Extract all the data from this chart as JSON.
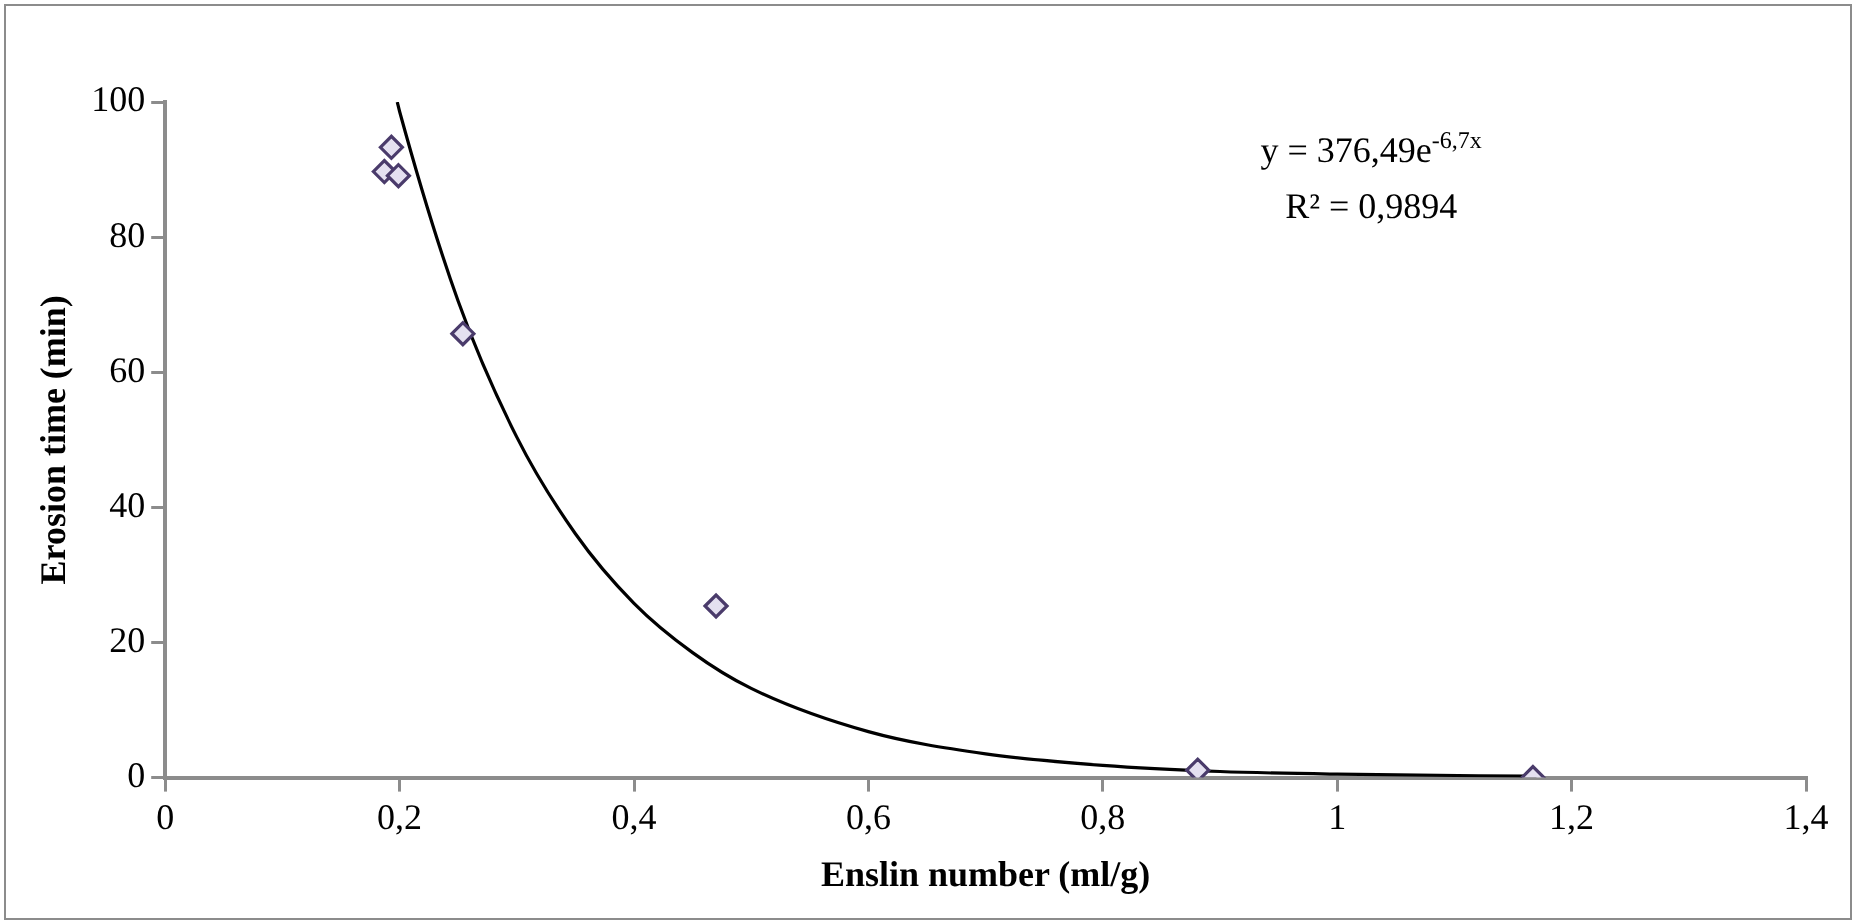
{
  "chart_data": {
    "type": "scatter",
    "xlabel": "Enslin number (ml/g)",
    "ylabel": "Erosion time (min)",
    "xlim": [
      0,
      1.4
    ],
    "xticks": [
      {
        "value": 0,
        "label": "0"
      },
      {
        "value": 0.2,
        "label": "0,2"
      },
      {
        "value": 0.4,
        "label": "0,4"
      },
      {
        "value": 0.6,
        "label": "0,6"
      },
      {
        "value": 0.8,
        "label": "0,8"
      },
      {
        "value": 1,
        "label": "1"
      },
      {
        "value": 1.2,
        "label": "1,2"
      },
      {
        "value": 1.4,
        "label": "1,4"
      }
    ],
    "ylim": [
      0,
      100
    ],
    "yticks": [
      0,
      20,
      40,
      60,
      80,
      100
    ],
    "grid": false,
    "legend": false,
    "marker": "diamond",
    "series": [
      {
        "color": "#4a3b6b",
        "x": [
          0.187,
          0.193,
          0.199,
          0.254,
          0.47,
          0.881,
          1.167
        ],
        "values": [
          89.7,
          93.3,
          89.1,
          65.7,
          25.4,
          1.1,
          0
        ]
      },
      {
        "type": "line",
        "color": "#000000",
        "marker": "none",
        "line_style": "solid",
        "x": [
          0.198,
          0.2,
          0.25,
          0.3,
          0.35,
          0.4,
          0.45,
          0.5,
          0.6,
          0.7,
          0.8,
          0.9,
          1.0,
          1.17
        ],
        "values": [
          100,
          98.6,
          70.5,
          50.4,
          36.1,
          25.8,
          18.5,
          13.2,
          6.8,
          3.5,
          1.8,
          0.9,
          0.5,
          0.2
        ]
      }
    ],
    "annotations": [
      "y = 376,49e$^{-6,7x}$",
      "R² = 0,9894"
    ]
  }
}
